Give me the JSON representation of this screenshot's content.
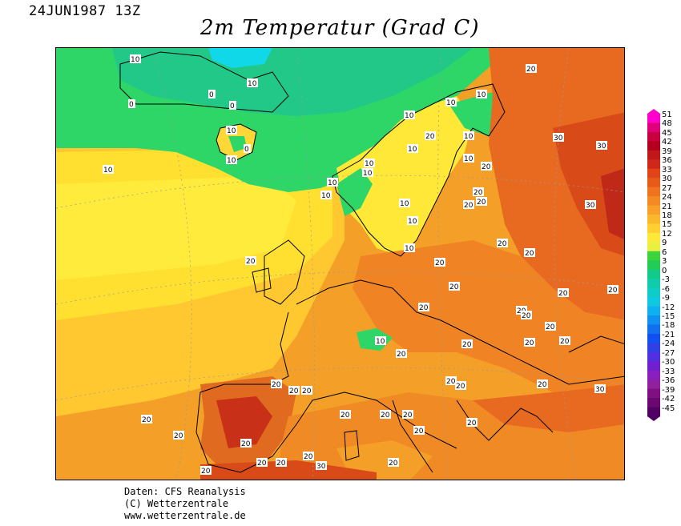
{
  "header": {
    "date": "24JUN1987 13Z",
    "title": "2m Temperatur (Grad C)"
  },
  "colorbar": {
    "ticks": [
      "51",
      "48",
      "45",
      "42",
      "39",
      "36",
      "33",
      "30",
      "27",
      "24",
      "21",
      "18",
      "15",
      "12",
      "9",
      "6",
      "3",
      "0",
      "-3",
      "-6",
      "-9",
      "-12",
      "-15",
      "-18",
      "-21",
      "-24",
      "-27",
      "-30",
      "-33",
      "-36",
      "-39",
      "-42",
      "-45"
    ],
    "colors": [
      "#ff00cc",
      "#e0007a",
      "#c80040",
      "#b40020",
      "#c01818",
      "#d02818",
      "#e04418",
      "#e85a18",
      "#f07420",
      "#f48a24",
      "#f8a028",
      "#fcb82c",
      "#ffd030",
      "#ffe838",
      "#e8f040",
      "#3cd43c",
      "#22cc55",
      "#10cc88",
      "#10ccaa",
      "#10ccc8",
      "#10c8e0",
      "#10b0f0",
      "#1090f0",
      "#1070f0",
      "#1050f0",
      "#3040e8",
      "#5030e0",
      "#7020d0",
      "#8820c0",
      "#9020a0",
      "#801080",
      "#6a0870",
      "#500060"
    ]
  },
  "map": {
    "contour_labels": [
      "0",
      "10",
      "20",
      "30"
    ],
    "colors": {
      "ocean_cold": "#2ed668",
      "ocean_mild": "#ffe020",
      "land_warm": "#f08a24",
      "land_hot": "#d03c18",
      "ice": "#10d8e8"
    }
  },
  "credits": {
    "line1": "Daten: CFS Reanalysis",
    "line2": "(C) Wetterzentrale",
    "line3": "www.wetterzentrale.de"
  }
}
